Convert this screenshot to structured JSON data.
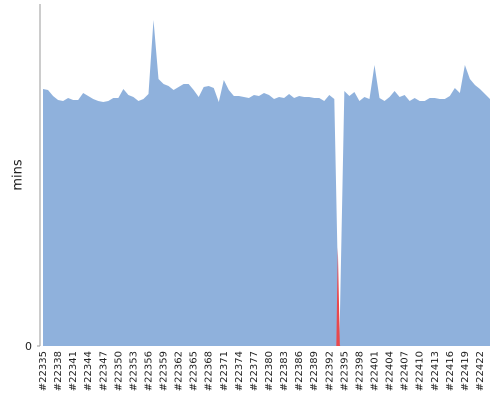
{
  "chart_data": {
    "type": "area",
    "ylabel": "mins",
    "categories": [
      "#22335",
      null,
      null,
      "#22338",
      null,
      null,
      "#22341",
      null,
      null,
      "#22344",
      null,
      null,
      "#22347",
      null,
      null,
      "#22350",
      null,
      null,
      "#22353",
      null,
      null,
      "#22356",
      null,
      null,
      "#22359",
      null,
      null,
      "#22362",
      null,
      null,
      "#22365",
      null,
      null,
      "#22368",
      null,
      null,
      "#22371",
      null,
      null,
      "#22374",
      null,
      null,
      "#22377",
      null,
      null,
      "#22380",
      null,
      null,
      "#22383",
      null,
      null,
      "#22386",
      null,
      null,
      "#22389",
      null,
      null,
      "#22392",
      null,
      null,
      "#22395",
      null,
      null,
      "#22398",
      null,
      null,
      "#22401",
      null,
      null,
      "#22404",
      null,
      null,
      "#22407",
      null,
      null,
      "#22410",
      null,
      null,
      "#22413",
      null,
      null,
      "#22416",
      null,
      null,
      "#22419",
      null,
      null,
      "#22422",
      null,
      null
    ],
    "values": [
      25.7,
      25.6,
      25.0,
      24.6,
      24.5,
      24.8,
      24.6,
      24.6,
      25.3,
      25.0,
      24.7,
      24.5,
      24.4,
      24.5,
      24.8,
      24.8,
      25.7,
      25.1,
      24.9,
      24.5,
      24.7,
      25.2,
      32.6,
      26.7,
      26.2,
      26.0,
      25.6,
      25.9,
      26.2,
      26.2,
      25.6,
      24.9,
      25.9,
      26.0,
      25.8,
      24.4,
      26.6,
      25.6,
      25.0,
      25.0,
      24.9,
      24.8,
      25.1,
      25.0,
      25.3,
      25.1,
      24.7,
      24.9,
      24.8,
      25.2,
      24.8,
      25.0,
      24.9,
      24.9,
      24.8,
      24.8,
      24.5,
      25.1,
      24.7,
      0,
      25.5,
      25.0,
      25.4,
      24.5,
      24.9,
      24.7,
      28.1,
      24.8,
      24.5,
      24.9,
      25.5,
      24.9,
      25.1,
      24.5,
      24.8,
      24.5,
      24.5,
      24.8,
      24.8,
      24.7,
      24.7,
      25.0,
      25.8,
      25.3,
      28.1,
      26.7,
      26.1,
      25.7,
      25.2,
      24.7
    ],
    "color": "#8fb1dc",
    "failure_color": "#e8484d",
    "point_colors": [
      "#8fb1dc",
      "#8fb1dc",
      "#8fb1dc",
      "#8fb1dc",
      "#8fb1dc",
      "#8fb1dc",
      "#8fb1dc",
      "#8fb1dc",
      "#8fb1dc",
      "#8fb1dc",
      "#8fb1dc",
      "#8fb1dc",
      "#8fb1dc",
      "#8fb1dc",
      "#8fb1dc",
      "#8fb1dc",
      "#8fb1dc",
      "#8fb1dc",
      "#8fb1dc",
      "#8fb1dc",
      "#8fb1dc",
      "#8fb1dc",
      "#8fb1dc",
      "#8fb1dc",
      "#8fb1dc",
      "#8fb1dc",
      "#8fb1dc",
      "#8fb1dc",
      "#8fb1dc",
      "#8fb1dc",
      "#8fb1dc",
      "#8fb1dc",
      "#8fb1dc",
      "#8fb1dc",
      "#8fb1dc",
      "#8fb1dc",
      "#8fb1dc",
      "#8fb1dc",
      "#8fb1dc",
      "#8fb1dc",
      "#8fb1dc",
      "#8fb1dc",
      "#8fb1dc",
      "#8fb1dc",
      "#8fb1dc",
      "#8fb1dc",
      "#8fb1dc",
      "#8fb1dc",
      "#8fb1dc",
      "#8fb1dc",
      "#8fb1dc",
      "#8fb1dc",
      "#8fb1dc",
      "#8fb1dc",
      "#8fb1dc",
      "#8fb1dc",
      "#8fb1dc",
      "#8fb1dc",
      "#8fb1dc",
      "#e8484d",
      "#8fb1dc",
      "#8fb1dc",
      "#8fb1dc",
      "#8fb1dc",
      "#8fb1dc",
      "#8fb1dc",
      "#8fb1dc",
      "#8fb1dc",
      "#8fb1dc",
      "#8fb1dc",
      "#8fb1dc",
      "#8fb1dc",
      "#8fb1dc",
      "#8fb1dc",
      "#8fb1dc",
      "#8fb1dc",
      "#8fb1dc",
      "#8fb1dc",
      "#8fb1dc",
      "#8fb1dc",
      "#8fb1dc",
      "#8fb1dc",
      "#8fb1dc",
      "#8fb1dc",
      "#8fb1dc",
      "#8fb1dc",
      "#8fb1dc",
      "#8fb1dc",
      "#8fb1dc",
      "#8fb1dc"
    ],
    "ylim": [
      0,
      34
    ],
    "yticks": [
      0
    ]
  }
}
